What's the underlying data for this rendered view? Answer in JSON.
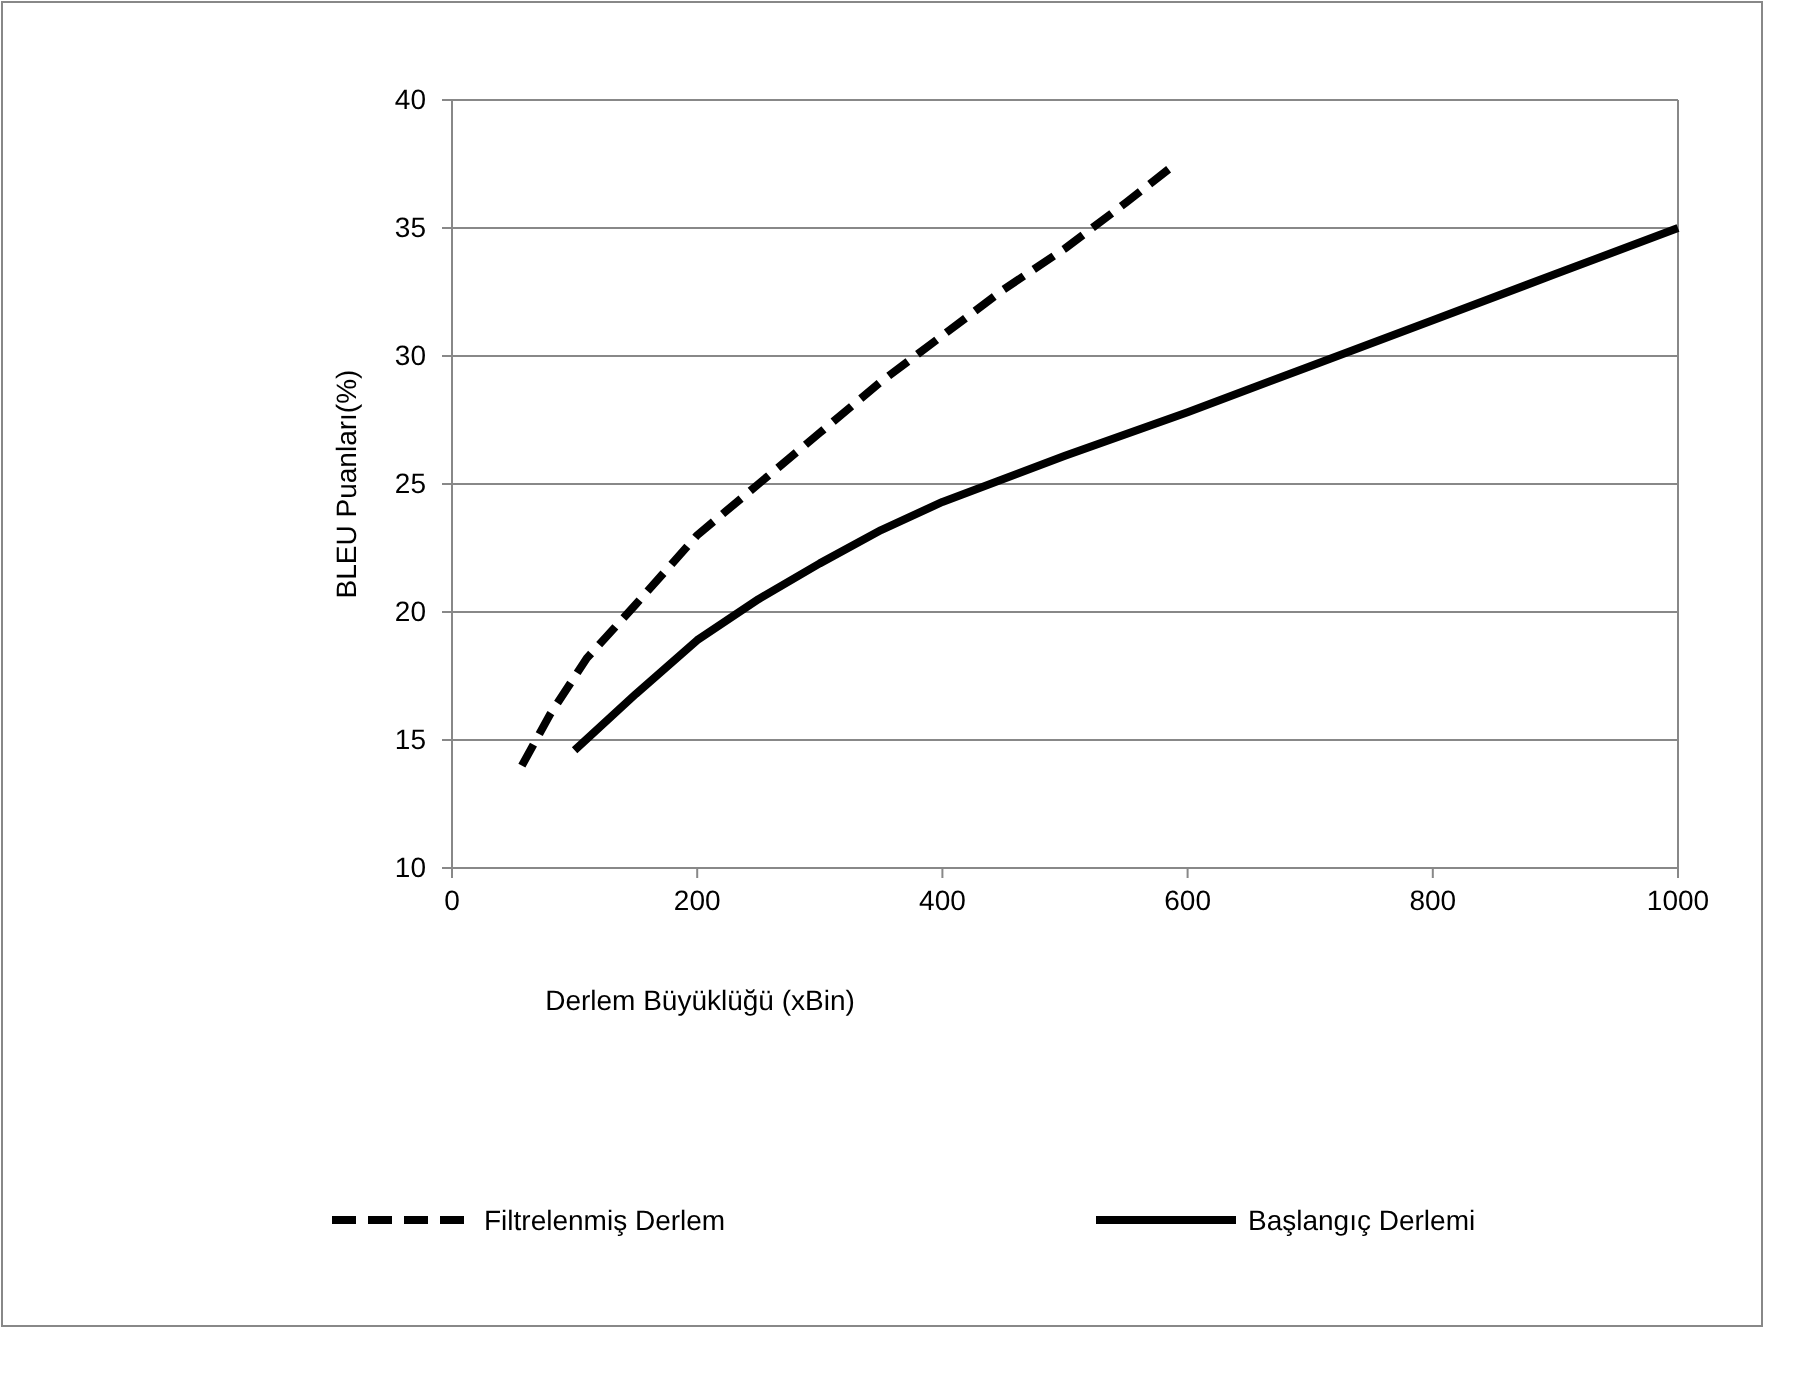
{
  "chart_data": {
    "type": "line",
    "xlabel": "Derlem Büyüklüğü (xBin)",
    "ylabel": "BLEU Puanları(%)",
    "xlim": [
      0,
      1000
    ],
    "xticks": [
      0,
      200,
      400,
      600,
      800,
      1000
    ],
    "ylim": [
      10,
      40
    ],
    "yticks": [
      10,
      15,
      20,
      25,
      30,
      35,
      40
    ],
    "grid": "y",
    "legend": "bottom",
    "marker": "none",
    "series": [
      {
        "name": "Filtrelenmiş Derlem",
        "color": "#000000",
        "line_style": "dashed",
        "x": [
          57,
          80,
          110,
          150,
          200,
          250,
          300,
          350,
          400,
          450,
          500,
          550,
          590
        ],
        "values": [
          14,
          16,
          18.2,
          20.3,
          23,
          25,
          27,
          29,
          30.8,
          32.6,
          34.2,
          36,
          37.5
        ]
      },
      {
        "name": "Başlangıç Derlemi",
        "color": "#000000",
        "line_style": "solid",
        "x": [
          100,
          150,
          200,
          250,
          300,
          350,
          400,
          500,
          600,
          700,
          800,
          900,
          1000
        ],
        "values": [
          14.6,
          16.8,
          18.9,
          20.5,
          21.9,
          23.2,
          24.3,
          26.1,
          27.8,
          29.6,
          31.4,
          33.2,
          35
        ]
      }
    ]
  }
}
